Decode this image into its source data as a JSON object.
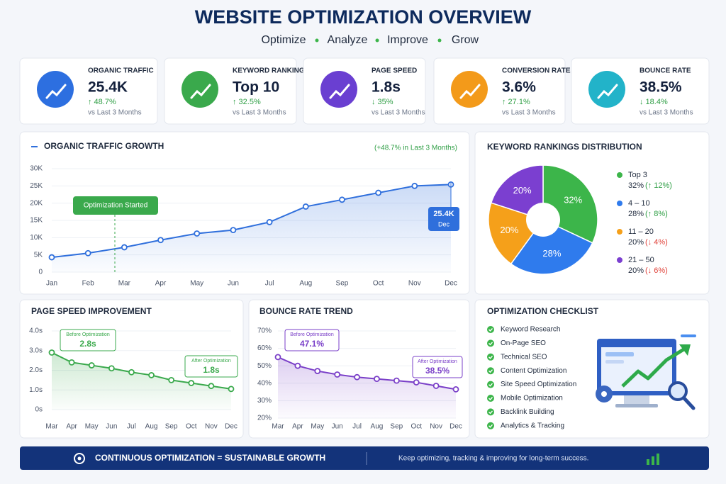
{
  "header": {
    "title": "WEBSITE OPTIMIZATION OVERVIEW",
    "subtitle": [
      "Optimize",
      "Analyze",
      "Improve",
      "Grow"
    ]
  },
  "kpis": [
    {
      "label": "ORGANIC TRAFFIC",
      "value": "25.4K",
      "change": "↑ 48.7%",
      "note": "vs Last 3 Months",
      "color": "#2d6fe0"
    },
    {
      "label": "KEYWORD RANKINGS",
      "value": "Top 10",
      "change": "↑ 32.5%",
      "note": "vs Last 3 Months",
      "color": "#3aa94c"
    },
    {
      "label": "PAGE SPEED",
      "value": "1.8s",
      "change": "↓ 35%",
      "note": "vs Last 3 Months",
      "color": "#6a3fd1"
    },
    {
      "label": "CONVERSION RATE",
      "value": "3.6%",
      "change": "↑ 27.1%",
      "note": "vs Last 3 Months",
      "color": "#f39a1a"
    },
    {
      "label": "BOUNCE RATE",
      "value": "38.5%",
      "change": "↓ 18.4%",
      "note": "vs Last 3 Months",
      "color": "#22b3c9"
    }
  ],
  "chart_data": [
    {
      "type": "line",
      "title": "ORGANIC TRAFFIC GROWTH",
      "subtitle": "(+48.7% in Last 3 Months)",
      "color": "#2f6fdc",
      "categories": [
        "Jan",
        "Feb",
        "Mar",
        "Apr",
        "May",
        "Jun",
        "Jul",
        "Aug",
        "Sep",
        "Oct",
        "Nov",
        "Dec"
      ],
      "values": [
        4.3,
        5.5,
        7.2,
        9.3,
        11.2,
        12.2,
        14.5,
        19.0,
        21.0,
        23.0,
        25.0,
        25.4
      ],
      "ylim": [
        0,
        30
      ],
      "yticks": [
        0,
        {
          "value": 5,
          "label": "5K"
        },
        {
          "value": 10,
          "label": "10K"
        },
        {
          "value": 15,
          "label": "15K"
        },
        {
          "value": 20,
          "label": "20K"
        },
        {
          "value": 25,
          "label": "25K"
        },
        {
          "value": 30,
          "label": "30K"
        }
      ],
      "annotations": [
        {
          "label": "Optimization Started"
        },
        {
          "label": "25.4K",
          "sub": "Dec"
        }
      ]
    },
    {
      "type": "pie",
      "title": "KEYWORD RANKINGS DISTRIBUTION",
      "categories": [
        "Top 3",
        "4 – 10",
        "11 – 20",
        "21 – 50"
      ],
      "values": [
        32,
        28,
        20,
        20
      ],
      "value_labels": [
        "32%",
        "28%",
        "20%",
        "20%"
      ],
      "colors": [
        "#3cb54a",
        "#2f7bed",
        "#f5a01a",
        "#7b3fd0"
      ],
      "changes": [
        "(↑ 12%)",
        "(↑ 8%)",
        "(↓ 4%)",
        "(↓ 6%)"
      ],
      "change_colors": [
        "#2e9e44",
        "#2e9e44",
        "#e0433b",
        "#e0433b"
      ]
    },
    {
      "type": "line",
      "title": "PAGE SPEED IMPROVEMENT",
      "color": "#3aa94c",
      "categories": [
        "Mar",
        "Apr",
        "May",
        "Jun",
        "Jul",
        "Aug",
        "Sep",
        "Oct",
        "Nov",
        "Dec"
      ],
      "values": [
        2.9,
        2.4,
        2.25,
        2.1,
        1.9,
        1.75,
        1.5,
        1.35,
        1.2,
        1.05
      ],
      "ylim": [
        0,
        4
      ],
      "yticks": [
        {
          "value": 0,
          "label": "0s"
        },
        {
          "value": 1,
          "label": "1.0s"
        },
        {
          "value": 2,
          "label": "2.0s"
        },
        {
          "value": 3,
          "label": "3.0s"
        },
        {
          "value": 4,
          "label": "4.0s"
        }
      ],
      "annotations": [
        {
          "label": "Before Optimization",
          "sub": "2.8s"
        },
        {
          "label": "After Optimization",
          "sub": "1.8s"
        }
      ]
    },
    {
      "type": "line",
      "title": "BOUNCE RATE TREND",
      "color": "#7a3fc8",
      "categories": [
        "Mar",
        "Apr",
        "May",
        "Jun",
        "Jul",
        "Aug",
        "Sep",
        "Oct",
        "Nov",
        "Dec"
      ],
      "values": [
        55,
        50,
        47,
        45,
        43.5,
        42.5,
        41.5,
        40.5,
        38.5,
        36.5
      ],
      "ylim": [
        20,
        70
      ],
      "yticks": [
        {
          "value": 20,
          "label": "20%"
        },
        {
          "value": 30,
          "label": "30%"
        },
        {
          "value": 40,
          "label": "40%"
        },
        {
          "value": 50,
          "label": "50%"
        },
        {
          "value": 60,
          "label": "60%"
        },
        {
          "value": 70,
          "label": "70%"
        }
      ],
      "annotations": [
        {
          "label": "Before Optimization",
          "sub": "47.1%"
        },
        {
          "label": "After Optimization",
          "sub": "38.5%"
        }
      ]
    }
  ],
  "checklist": {
    "title": "OPTIMIZATION CHECKLIST",
    "items": [
      "Keyword Research",
      "On-Page SEO",
      "Technical SEO",
      "Content Optimization",
      "Site Speed Optimization",
      "Mobile Optimization",
      "Backlink Building",
      "Analytics & Tracking"
    ]
  },
  "footer": {
    "title": "CONTINUOUS OPTIMIZATION = SUSTAINABLE GROWTH",
    "text": "Keep optimizing, tracking & improving for long-term success."
  }
}
